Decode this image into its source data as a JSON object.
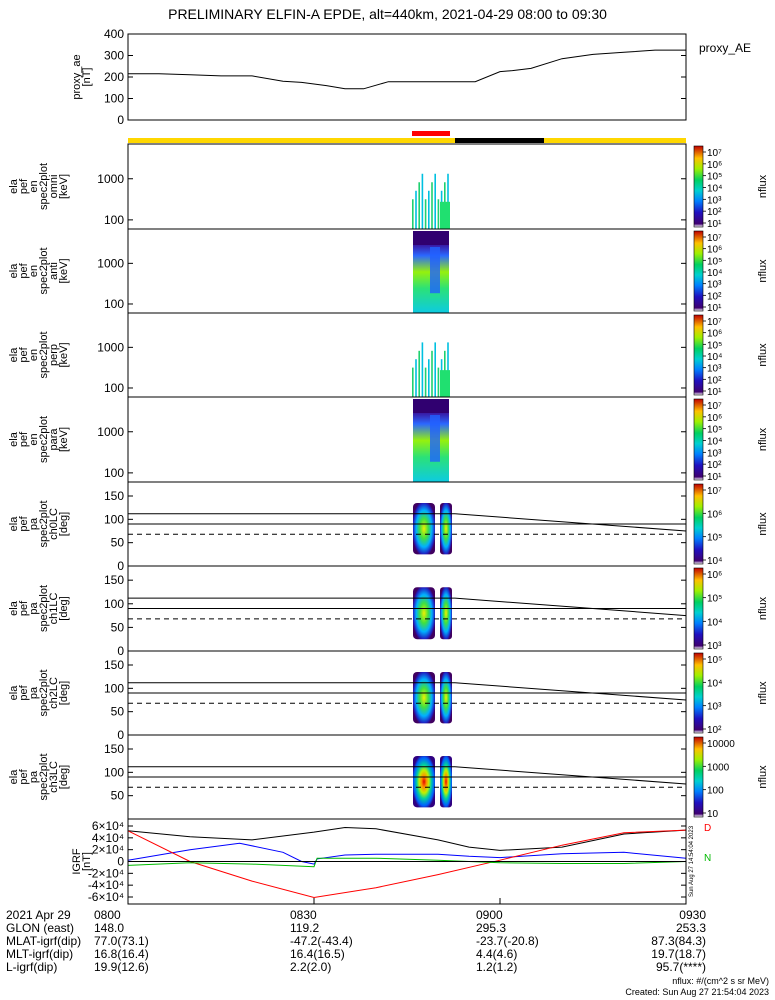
{
  "title": "PRELIMINARY ELFIN-A EPDE, alt=440km, 2021-04-29 08:00 to 09:30",
  "colors": {
    "segment_yellow": "#ffd700",
    "segment_red": "#ff0000",
    "segment_black": "#000000",
    "ae_line": "#000000",
    "grf_x": "#000000",
    "grf_y": "#0000ff",
    "grf_z": "#ff0000",
    "grf_w": "#00bb00"
  },
  "chart_data": [
    {
      "type": "line",
      "ylabel": [
        "proxy_ae",
        "[nT]"
      ],
      "legend": "proxy_AE",
      "ylim": [
        0,
        400
      ],
      "yticks": [
        "0",
        "100",
        "200",
        "300",
        "400"
      ],
      "series": [
        {
          "name": "proxy_AE",
          "x": [
            0,
            5,
            10,
            15,
            20,
            25,
            28,
            32,
            35,
            38,
            42,
            45,
            50,
            56,
            60,
            62,
            65,
            70,
            75,
            80,
            85,
            90
          ],
          "y": [
            215,
            215,
            210,
            205,
            205,
            180,
            175,
            160,
            145,
            145,
            178,
            178,
            178,
            178,
            225,
            230,
            240,
            285,
            305,
            315,
            325,
            325
          ]
        }
      ]
    },
    {
      "type": "heatmap",
      "ylabel": [
        "ela",
        "pef",
        "en",
        "spec2plot",
        "omni",
        "[keV]"
      ],
      "yscale": "log",
      "ylim": [
        60,
        7000
      ],
      "yticks": [
        "100",
        "1000"
      ],
      "cbar_label": "nflux",
      "cbar_ticks": [
        "10¹",
        "10²",
        "10³",
        "10⁴",
        "10⁵",
        "10⁶",
        "10⁷"
      ]
    },
    {
      "type": "heatmap",
      "ylabel": [
        "ela",
        "pef",
        "en",
        "spec2plot",
        "anti",
        "[keV]"
      ],
      "yscale": "log",
      "ylim": [
        60,
        7000
      ],
      "yticks": [
        "100",
        "1000"
      ],
      "cbar_label": "nflux",
      "cbar_ticks": [
        "10¹",
        "10²",
        "10³",
        "10⁴",
        "10⁵",
        "10⁶",
        "10⁷"
      ]
    },
    {
      "type": "heatmap",
      "ylabel": [
        "ela",
        "pef",
        "en",
        "spec2plot",
        "perp",
        "[keV]"
      ],
      "yscale": "log",
      "ylim": [
        60,
        7000
      ],
      "yticks": [
        "100",
        "1000"
      ],
      "cbar_label": "nflux",
      "cbar_ticks": [
        "10¹",
        "10²",
        "10³",
        "10⁴",
        "10⁵",
        "10⁶",
        "10⁷"
      ]
    },
    {
      "type": "heatmap",
      "ylabel": [
        "ela",
        "pef",
        "en",
        "spec2plot",
        "para",
        "[keV]"
      ],
      "yscale": "log",
      "ylim": [
        60,
        7000
      ],
      "yticks": [
        "100",
        "1000"
      ],
      "cbar_label": "nflux",
      "cbar_ticks": [
        "10¹",
        "10²",
        "10³",
        "10⁴",
        "10⁵",
        "10⁶",
        "10⁷"
      ]
    },
    {
      "type": "heatmap",
      "ylabel": [
        "ela",
        "pef",
        "pa",
        "spec2plot",
        "ch0LC",
        "[deg]"
      ],
      "ylim": [
        0,
        180
      ],
      "yticks": [
        "0",
        "50",
        "100",
        "150"
      ],
      "cbar_label": "nflux",
      "cbar_ticks": [
        "10⁴",
        "10⁵",
        "10⁶",
        "10⁷"
      ]
    },
    {
      "type": "heatmap",
      "ylabel": [
        "ela",
        "pef",
        "pa",
        "spec2plot",
        "ch1LC",
        "[deg]"
      ],
      "ylim": [
        0,
        180
      ],
      "yticks": [
        "0",
        "50",
        "100",
        "150"
      ],
      "cbar_label": "nflux",
      "cbar_ticks": [
        "10³",
        "10⁴",
        "10⁵",
        "10⁶"
      ]
    },
    {
      "type": "heatmap",
      "ylabel": [
        "ela",
        "pef",
        "pa",
        "spec2plot",
        "ch2LC",
        "[deg]"
      ],
      "ylim": [
        0,
        180
      ],
      "yticks": [
        "0",
        "50",
        "100",
        "150"
      ],
      "cbar_label": "nflux",
      "cbar_ticks": [
        "10²",
        "10³",
        "10⁴",
        "10⁵"
      ]
    },
    {
      "type": "heatmap",
      "ylabel": [
        "ela",
        "pef",
        "pa",
        "spec2plot",
        "ch3LC",
        "[deg]"
      ],
      "ylim": [
        0,
        180
      ],
      "yticks": [
        "50",
        "100",
        "150"
      ],
      "cbar_label": "nflux",
      "cbar_ticks": [
        "10",
        "100",
        "1000",
        "10000"
      ]
    },
    {
      "type": "line",
      "ylabel": [
        "IGRF",
        "[nT]"
      ],
      "ylim": [
        -65000,
        65000
      ],
      "yticks": [
        "-6×10⁴",
        "-4×10⁴",
        "-2×10⁴",
        "0",
        "2×10⁴",
        "4×10⁴",
        "6×10⁴"
      ],
      "side_labels": [
        "D",
        "N"
      ],
      "stamp": "Sun Aug 27 14:54:04 2023",
      "series": [
        {
          "x": [
            0,
            10,
            20,
            30,
            35,
            40,
            50,
            55,
            60,
            70,
            80,
            90
          ],
          "y": [
            47000,
            38000,
            33000,
            45000,
            52000,
            50000,
            33000,
            22000,
            17000,
            22000,
            42000,
            48000
          ]
        },
        {
          "x": [
            0,
            10,
            18,
            25,
            28,
            30,
            30.5,
            35,
            40,
            45,
            50,
            55,
            60,
            70,
            80,
            90
          ],
          "y": [
            2000,
            18000,
            28000,
            14000,
            0,
            -4000,
            4000,
            10000,
            11000,
            11000,
            11000,
            8000,
            6000,
            12000,
            14000,
            5000
          ]
        },
        {
          "x": [
            0,
            10,
            20,
            30,
            40,
            50,
            60,
            70,
            80,
            90
          ],
          "y": [
            47000,
            0,
            -30000,
            -55000,
            -40000,
            -20000,
            2000,
            25000,
            44000,
            48000
          ]
        },
        {
          "x": [
            0,
            10,
            20,
            30,
            30.5,
            40,
            50,
            55,
            60,
            70,
            80,
            90
          ],
          "y": [
            -6000,
            -2000,
            -4000,
            -8000,
            5000,
            5000,
            2000,
            0,
            -2000,
            -3000,
            -3000,
            0
          ]
        }
      ]
    }
  ],
  "footer": {
    "rows": [
      {
        "label": "2021 Apr 29",
        "values": [
          "0800",
          "0830",
          "0900",
          "0930"
        ]
      },
      {
        "label": "GLON (east)",
        "values": [
          "148.0",
          "119.2",
          "295.3",
          "253.3"
        ]
      },
      {
        "label": "MLAT-igrf(dip)",
        "values": [
          "77.0(73.1)",
          "-47.2(-43.4)",
          "-23.7(-20.8)",
          "87.3(84.3)"
        ]
      },
      {
        "label": "MLT-igrf(dip)",
        "values": [
          "16.8(16.4)",
          "16.4(16.5)",
          "4.4(4.6)",
          "19.7(18.7)"
        ]
      },
      {
        "label": "L-igrf(dip)",
        "values": [
          "19.9(12.6)",
          "2.2(2.0)",
          "1.2(1.2)",
          "95.7(****)"
        ]
      }
    ],
    "nflux_units": "nflux: #/(cm^2 s sr MeV)",
    "created": "Created: Sun Aug 27 21:54:04 2023"
  }
}
